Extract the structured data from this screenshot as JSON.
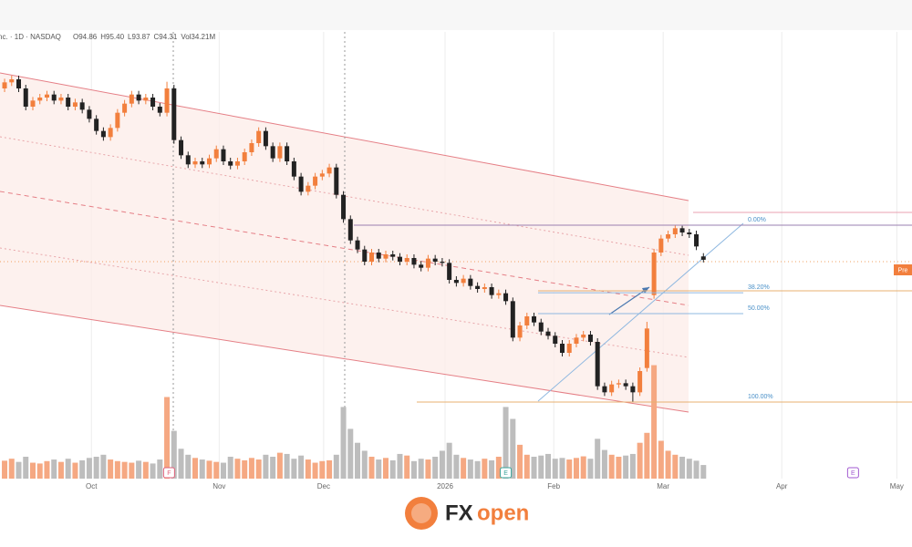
{
  "chart_data": {
    "type": "candlestick",
    "header": "nc. · 1D · NASDAQ",
    "legend_labels": [
      "O94.86",
      "H95.40",
      "L93.87",
      "C94.31",
      "Vol34.21M"
    ],
    "categories": [
      null,
      null,
      null,
      null,
      null,
      null,
      null,
      null,
      null,
      null,
      null,
      null,
      null,
      null,
      null,
      null,
      null,
      null,
      null,
      null,
      null,
      null,
      null,
      null,
      null,
      null,
      null,
      null,
      null,
      null,
      null,
      null,
      null,
      null,
      null,
      null,
      null,
      null,
      null,
      null,
      null,
      null,
      null,
      null,
      null,
      null,
      null,
      null,
      null,
      null,
      null,
      null,
      null,
      null,
      null,
      null,
      null,
      null,
      null,
      null,
      null,
      null,
      null,
      null,
      null,
      null,
      null,
      null,
      null,
      null,
      null,
      null,
      null,
      null,
      null,
      null,
      null,
      null,
      null,
      null,
      null,
      null,
      null,
      null,
      null,
      null,
      null,
      null,
      null,
      null,
      null,
      null,
      null,
      null,
      null,
      null,
      null,
      null,
      null,
      null
    ],
    "open": [
      122.5,
      123.5,
      124,
      122.5,
      119.5,
      120.5,
      121,
      121.5,
      120.5,
      121,
      119.5,
      120.2,
      119,
      117.5,
      115.5,
      114.5,
      116,
      118.5,
      120,
      121.5,
      120.5,
      121,
      119.5,
      118.5,
      122.5,
      114,
      111.5,
      110,
      110.5,
      110,
      111,
      112.5,
      110.5,
      109.8,
      110.5,
      112,
      113.5,
      115.5,
      113,
      111,
      113,
      110.5,
      108,
      105.5,
      106.5,
      108,
      108.5,
      109.5,
      105,
      101,
      97.5,
      96,
      94,
      95.5,
      94.5,
      95.2,
      94.8,
      94,
      94.6,
      93.5,
      93,
      94.5,
      94,
      93.8,
      91,
      90.5,
      91.2,
      90,
      89.5,
      89.8,
      88.5,
      88.8,
      87.5,
      81.5,
      83.5,
      85,
      84,
      82.5,
      81.8,
      80.5,
      79,
      80.5,
      81.5,
      82,
      80.8,
      73.5,
      72.5,
      73.8,
      74,
      73.5,
      72.5,
      76.5,
      88.5,
      95.5,
      97.8,
      98.5,
      99.5,
      98.8,
      98.5,
      94.86
    ],
    "high": [
      124.1,
      124.6,
      124.6,
      123.1,
      121.1,
      121.6,
      122.1,
      122.1,
      121.6,
      121.6,
      120.8,
      120.8,
      119.6,
      118.1,
      116.1,
      116.6,
      119.1,
      120.6,
      122.1,
      122.1,
      121.6,
      121.6,
      120.1,
      123.6,
      123.1,
      114.6,
      112.1,
      111.1,
      111.1,
      111.6,
      113.1,
      113.1,
      111.1,
      111.1,
      112.6,
      114.1,
      116.1,
      116.1,
      113.6,
      113.6,
      113.6,
      111.1,
      108.6,
      107.1,
      108.6,
      109.1,
      110.1,
      110.1,
      105.6,
      101.6,
      98.1,
      96.6,
      96.1,
      96.1,
      95.8,
      95.8,
      95.4,
      95.2,
      95.2,
      94.1,
      95.1,
      95.1,
      94.6,
      94.4,
      91.6,
      91.8,
      91.8,
      90.6,
      90.4,
      90.4,
      89.4,
      89.4,
      88.1,
      84.1,
      85.6,
      85.6,
      84.6,
      83.1,
      82.4,
      81.1,
      81.1,
      82.1,
      82.6,
      82.6,
      81.4,
      74.1,
      74.4,
      74.6,
      74.6,
      74.1,
      76.6,
      84.1,
      96.1,
      98.4,
      99.1,
      100,
      99.9,
      99.4,
      99.1,
      95.4
    ],
    "low": [
      121.9,
      122.9,
      121.9,
      118.9,
      118.9,
      119.9,
      120.4,
      119.9,
      119.9,
      118.9,
      118.9,
      118.4,
      116.9,
      114.9,
      113.9,
      113.9,
      115.4,
      117.9,
      119.4,
      119.9,
      119.9,
      118.9,
      117.9,
      117.9,
      113.4,
      110.9,
      109.4,
      109.4,
      109.4,
      109.4,
      110.4,
      109.9,
      109.2,
      109.2,
      109.9,
      111.4,
      112.9,
      112.4,
      110.4,
      110.4,
      109.9,
      107.4,
      104.9,
      104.9,
      105.9,
      107.4,
      107.9,
      104.4,
      100.4,
      96.9,
      95.4,
      93.4,
      93.4,
      93.9,
      93.9,
      94.2,
      93.4,
      93.4,
      92.9,
      92.4,
      92.4,
      93.4,
      93.2,
      90.4,
      89.9,
      89.9,
      89.4,
      88.9,
      88.9,
      87.9,
      87.9,
      86.9,
      80.9,
      80.9,
      82.9,
      83.4,
      81.9,
      81.2,
      79.9,
      78.4,
      78.4,
      79.9,
      80.9,
      80.2,
      72.9,
      71.9,
      71.9,
      73.2,
      72.9,
      70.9,
      71.9,
      75.9,
      87.9,
      94.9,
      97.2,
      97.9,
      98.2,
      97.9,
      95.9,
      93.87
    ],
    "close": [
      123.5,
      124,
      122.5,
      119.5,
      120.5,
      121,
      121.5,
      120.5,
      121,
      119.5,
      120.2,
      119,
      117.5,
      115.5,
      114.5,
      116,
      118.5,
      120,
      121.5,
      120.5,
      121,
      119.5,
      118.5,
      122.5,
      114,
      111.5,
      110,
      110.5,
      110,
      111,
      112.5,
      110.5,
      109.8,
      110.5,
      112,
      113.5,
      115.5,
      113,
      111,
      113,
      110.5,
      108,
      105.5,
      106.5,
      108,
      108.5,
      109.5,
      105,
      101,
      97.5,
      96,
      94,
      95.5,
      94.5,
      95.2,
      94.8,
      94,
      94.6,
      93.5,
      93,
      94.5,
      94,
      93.8,
      91,
      90.5,
      91.2,
      90,
      89.5,
      89.8,
      88.5,
      88.8,
      87.5,
      81.5,
      83.5,
      85,
      84,
      82.5,
      81.8,
      80.5,
      79,
      80.5,
      81.5,
      82,
      80.8,
      73.5,
      72.5,
      73.8,
      74,
      73.5,
      72.5,
      76,
      83,
      95.5,
      97.8,
      98.5,
      99.5,
      98.8,
      98.5,
      96.5,
      94.31
    ],
    "volume": [
      45,
      50,
      42,
      55,
      40,
      38,
      44,
      48,
      42,
      50,
      40,
      46,
      52,
      55,
      60,
      48,
      44,
      42,
      40,
      45,
      42,
      38,
      48,
      205,
      120,
      75,
      60,
      52,
      48,
      45,
      42,
      40,
      55,
      50,
      46,
      52,
      48,
      60,
      55,
      65,
      62,
      50,
      58,
      48,
      40,
      44,
      46,
      60,
      180,
      125,
      90,
      70,
      55,
      48,
      52,
      46,
      62,
      58,
      44,
      50,
      48,
      55,
      70,
      90,
      60,
      52,
      48,
      44,
      50,
      46,
      55,
      180,
      150,
      85,
      60,
      55,
      58,
      62,
      50,
      52,
      48,
      52,
      56,
      50,
      100,
      72,
      60,
      55,
      58,
      62,
      90,
      115,
      285,
      95,
      70,
      60,
      55,
      50,
      45,
      34.21
    ],
    "up_color": "#f27f3d",
    "down_color": "#222222",
    "volume_up_color": "#f5a882",
    "volume_down_color": "#bdbdbd",
    "xlim": [
      -0.65,
      128.55
    ],
    "xticks": [
      {
        "value": 12.3,
        "label": "Oct"
      },
      {
        "value": 30.4,
        "label": "Nov"
      },
      {
        "value": 45.2,
        "label": "Dec"
      },
      {
        "value": 62.4,
        "label": "2026"
      },
      {
        "value": 77.8,
        "label": "Feb"
      },
      {
        "value": 93.3,
        "label": "Mar"
      },
      {
        "value": 110.1,
        "label": "Apr"
      },
      {
        "value": 126.4,
        "label": "May"
      }
    ],
    "ylim": [
      58.3,
      131.8
    ],
    "vlim": [
      0,
      300
    ],
    "grid": true,
    "fib_high": 100,
    "fib_low": 70.9,
    "fib_levels": [
      {
        "value": 0,
        "label": "0.00%"
      },
      {
        "value": 38.2,
        "label": "38.20%"
      },
      {
        "value": 50,
        "label": "50.00%"
      },
      {
        "value": 100,
        "label": "100.00%"
      }
    ],
    "events": [
      {
        "x": 23.3,
        "label": "F",
        "color": "#e0607a"
      },
      {
        "x": 71,
        "label": "E",
        "color": "#3aa39a"
      },
      {
        "x": 120.2,
        "label": "E",
        "color": "#a25ad0"
      }
    ],
    "pre_label": "Pre",
    "brand_parts": [
      "FX",
      "open"
    ]
  }
}
